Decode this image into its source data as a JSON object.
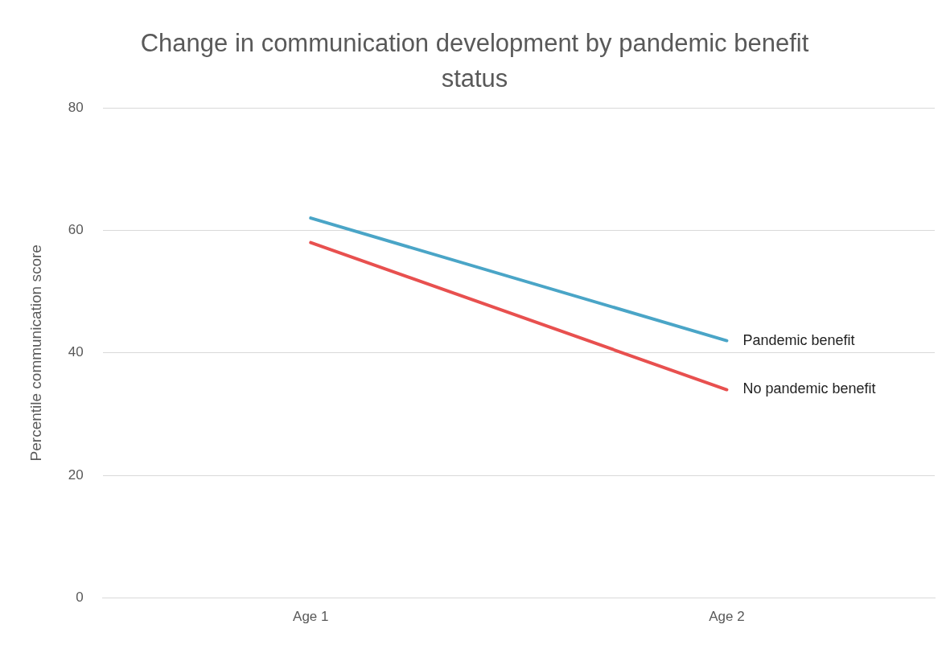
{
  "chart_data": {
    "type": "line",
    "title": "Change in communication development by pandemic benefit status",
    "ylabel": "Percentile communication score",
    "categories": [
      "Age 1",
      "Age 2"
    ],
    "series": [
      {
        "name": "Pandemic benefit",
        "color": "#4aa5c7",
        "values": [
          62,
          42
        ]
      },
      {
        "name": "No pandemic benefit",
        "color": "#e8504f",
        "values": [
          58,
          34
        ]
      }
    ],
    "ylim": [
      0,
      80
    ],
    "yticks": [
      0,
      20,
      40,
      60,
      80
    ],
    "grid": "y",
    "legend": false,
    "marker": "none",
    "line_style": "solid"
  }
}
